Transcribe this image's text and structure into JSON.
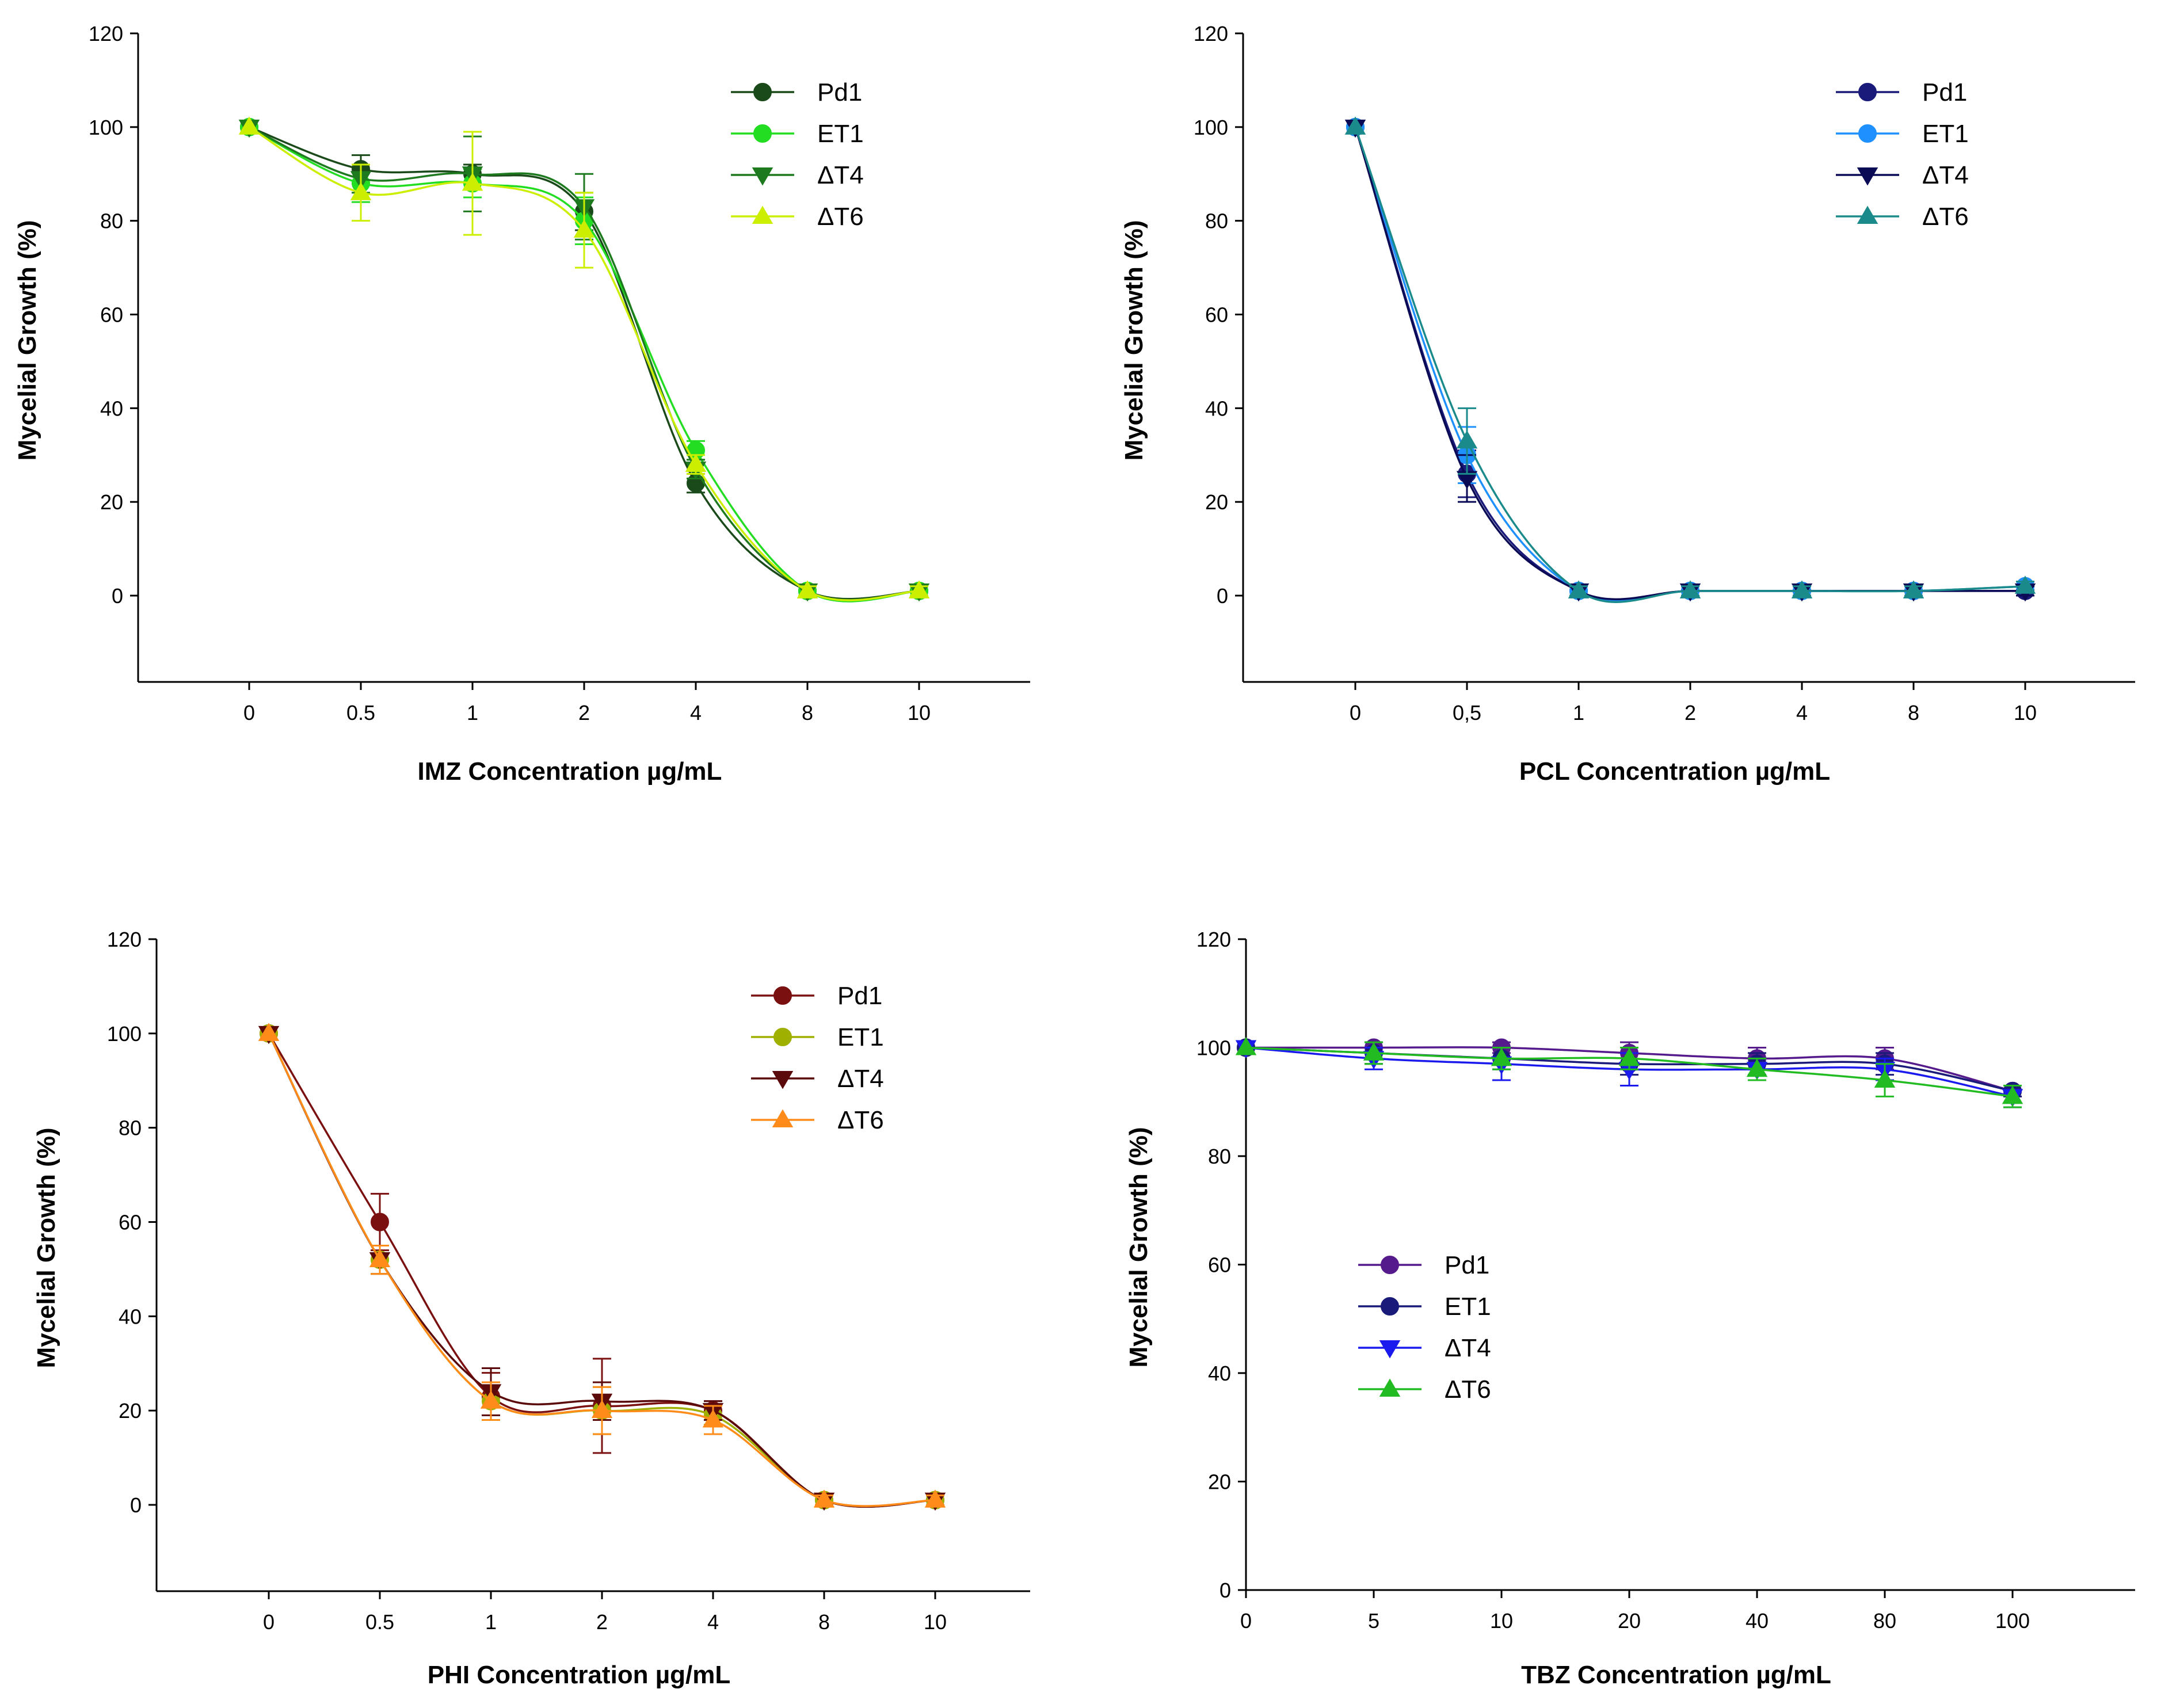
{
  "chart_data": [
    {
      "id": "imz",
      "type": "line",
      "xlabel": "IMZ Concentration µg/mL",
      "ylabel": "Mycelial Growth (%)",
      "categories": [
        "0",
        "0.5",
        "1",
        "2",
        "4",
        "8",
        "10"
      ],
      "ylim": [
        -18,
        120
      ],
      "yticks": [
        "0",
        "20",
        "40",
        "60",
        "80",
        "100",
        "120"
      ],
      "legend_position": "top-right",
      "series": [
        {
          "name": "Pd1",
          "marker": "circle",
          "color": "#1a4a1a",
          "values": [
            100,
            91,
            90,
            82,
            24,
            1,
            1
          ],
          "errors": [
            0,
            3,
            2,
            4,
            2,
            1,
            1
          ]
        },
        {
          "name": "ET1",
          "marker": "circle",
          "color": "#22dd22",
          "values": [
            100,
            88,
            88,
            80,
            31,
            1,
            1
          ],
          "errors": [
            0,
            4,
            3,
            5,
            2,
            1,
            1
          ]
        },
        {
          "name": "ΔT4",
          "marker": "triangle-down",
          "color": "#1e7a1e",
          "values": [
            100,
            89,
            90,
            83,
            27,
            1,
            1
          ],
          "errors": [
            0,
            3,
            8,
            7,
            2,
            1,
            1
          ]
        },
        {
          "name": "ΔT6",
          "marker": "triangle-up",
          "color": "#ccee00",
          "values": [
            100,
            86,
            88,
            78,
            28,
            1,
            1
          ],
          "errors": [
            0,
            6,
            11,
            8,
            2,
            1,
            1
          ]
        }
      ]
    },
    {
      "id": "pcl",
      "type": "line",
      "xlabel": "PCL Concentration µg/mL",
      "ylabel": "Mycelial Growth (%)",
      "categories": [
        "0",
        "0,5",
        "1",
        "2",
        "4",
        "8",
        "10"
      ],
      "ylim": [
        -18,
        120
      ],
      "yticks": [
        "0",
        "20",
        "40",
        "60",
        "80",
        "100",
        "120"
      ],
      "legend_position": "top-right",
      "series": [
        {
          "name": "Pd1",
          "marker": "circle",
          "color": "#1a1a7a",
          "values": [
            100,
            26,
            1,
            1,
            1,
            1,
            1
          ],
          "errors": [
            0,
            5,
            1,
            1,
            1,
            1,
            1
          ]
        },
        {
          "name": "ET1",
          "marker": "circle",
          "color": "#1e90ff",
          "values": [
            100,
            30,
            1,
            1,
            1,
            1,
            2
          ],
          "errors": [
            0,
            6,
            1,
            1,
            1,
            1,
            1
          ]
        },
        {
          "name": "ΔT4",
          "marker": "triangle-down",
          "color": "#0a0a55",
          "values": [
            100,
            25,
            1,
            1,
            1,
            1,
            1
          ],
          "errors": [
            0,
            5,
            1,
            1,
            1,
            1,
            1
          ]
        },
        {
          "name": "ΔT6",
          "marker": "triangle-up",
          "color": "#1a8a8a",
          "values": [
            100,
            33,
            1,
            1,
            1,
            1,
            2
          ],
          "errors": [
            0,
            7,
            1,
            1,
            1,
            1,
            1
          ]
        }
      ]
    },
    {
      "id": "phi",
      "type": "line",
      "xlabel": "PHI Concentration µg/mL",
      "ylabel": "Mycelial Growth (%)",
      "categories": [
        "0",
        "0.5",
        "1",
        "2",
        "4",
        "8",
        "10"
      ],
      "ylim": [
        -18,
        120
      ],
      "yticks": [
        "0",
        "20",
        "40",
        "60",
        "80",
        "100",
        "120"
      ],
      "legend_position": "top-right",
      "series": [
        {
          "name": "Pd1",
          "marker": "circle",
          "color": "#7a1010",
          "values": [
            100,
            60,
            23,
            21,
            20,
            1,
            1
          ],
          "errors": [
            0,
            6,
            5,
            10,
            2,
            1,
            1
          ]
        },
        {
          "name": "ET1",
          "marker": "circle",
          "color": "#a0b000",
          "values": [
            100,
            52,
            22,
            20,
            19,
            1,
            1
          ],
          "errors": [
            0,
            3,
            4,
            5,
            2,
            1,
            1
          ]
        },
        {
          "name": "ΔT4",
          "marker": "triangle-down",
          "color": "#5a0a0a",
          "values": [
            100,
            52,
            24,
            22,
            20,
            1,
            1
          ],
          "errors": [
            0,
            3,
            5,
            4,
            2,
            1,
            1
          ]
        },
        {
          "name": "ΔT6",
          "marker": "triangle-up",
          "color": "#ff8c1a",
          "values": [
            100,
            52,
            22,
            20,
            18,
            1,
            1
          ],
          "errors": [
            0,
            3,
            4,
            5,
            3,
            1,
            1
          ]
        }
      ]
    },
    {
      "id": "tbz",
      "type": "line",
      "xlabel": "TBZ Concentration µg/mL",
      "ylabel": "Mycelial Growth (%)",
      "categories": [
        "0",
        "5",
        "10",
        "20",
        "40",
        "80",
        "100"
      ],
      "ylim": [
        0,
        120
      ],
      "yticks": [
        "0",
        "20",
        "40",
        "60",
        "80",
        "100",
        "120"
      ],
      "legend_position": "center-left",
      "series": [
        {
          "name": "Pd1",
          "marker": "circle",
          "color": "#551a8b",
          "values": [
            100,
            100,
            100,
            99,
            98,
            98,
            92
          ],
          "errors": [
            0,
            1,
            1,
            2,
            2,
            2,
            1
          ]
        },
        {
          "name": "ET1",
          "marker": "circle",
          "color": "#1a1a7a",
          "values": [
            100,
            99,
            98,
            97,
            97,
            97,
            92
          ],
          "errors": [
            0,
            2,
            2,
            2,
            2,
            2,
            1
          ]
        },
        {
          "name": "ΔT4",
          "marker": "triangle-down",
          "color": "#1a1aee",
          "values": [
            100,
            98,
            97,
            96,
            96,
            96,
            91
          ],
          "errors": [
            0,
            2,
            3,
            3,
            2,
            2,
            2
          ]
        },
        {
          "name": "ΔT6",
          "marker": "triangle-up",
          "color": "#22bb22",
          "values": [
            100,
            99,
            98,
            98,
            96,
            94,
            91
          ],
          "errors": [
            0,
            2,
            2,
            2,
            2,
            3,
            2
          ]
        }
      ]
    }
  ]
}
